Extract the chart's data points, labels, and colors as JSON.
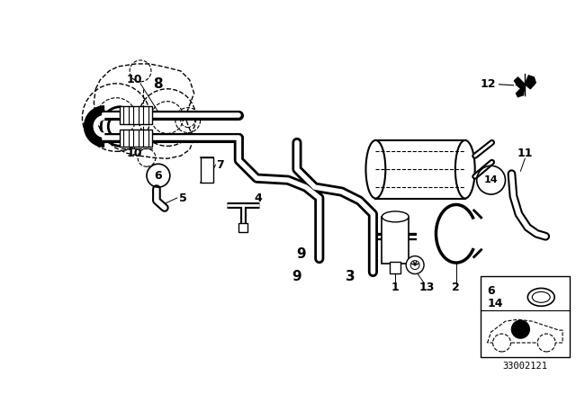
{
  "background_color": "#ffffff",
  "line_color": "#000000",
  "diagram_id": "33002121",
  "fig_w": 6.4,
  "fig_h": 4.48,
  "dpi": 100
}
